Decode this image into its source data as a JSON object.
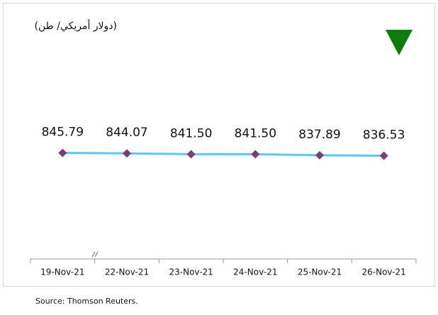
{
  "chart_data": {
    "type": "line",
    "title": "(دولار أمريكي/ طن)",
    "categories": [
      "19-Nov-21",
      "22-Nov-21",
      "23-Nov-21",
      "24-Nov-21",
      "25-Nov-21",
      "26-Nov-21"
    ],
    "values": [
      845.79,
      844.07,
      841.5,
      841.5,
      837.89,
      836.53
    ],
    "value_labels": [
      "845.79",
      "844.07",
      "841.50",
      "841.50",
      "837.89",
      "836.53"
    ],
    "color": "#5cc8f2",
    "marker_color": "#7d3c78",
    "ylim": [
      500,
      1240
    ],
    "source": "Source: Thomson Reuters."
  }
}
